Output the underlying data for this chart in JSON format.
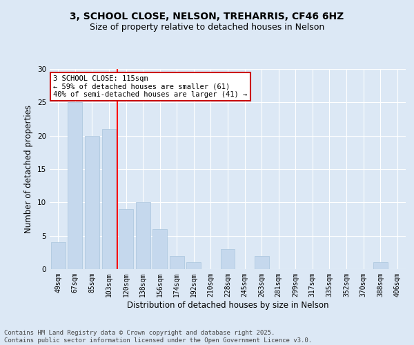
{
  "title1": "3, SCHOOL CLOSE, NELSON, TREHARRIS, CF46 6HZ",
  "title2": "Size of property relative to detached houses in Nelson",
  "xlabel": "Distribution of detached houses by size in Nelson",
  "ylabel": "Number of detached properties",
  "categories": [
    "49sqm",
    "67sqm",
    "85sqm",
    "103sqm",
    "120sqm",
    "138sqm",
    "156sqm",
    "174sqm",
    "192sqm",
    "210sqm",
    "228sqm",
    "245sqm",
    "263sqm",
    "281sqm",
    "299sqm",
    "317sqm",
    "335sqm",
    "352sqm",
    "370sqm",
    "388sqm",
    "406sqm"
  ],
  "values": [
    4,
    25,
    20,
    21,
    9,
    10,
    6,
    2,
    1,
    0,
    3,
    0,
    2,
    0,
    0,
    0,
    0,
    0,
    0,
    1,
    0
  ],
  "bar_color": "#c5d8ed",
  "bar_edge_color": "#a8c4dd",
  "red_line_index": 4,
  "ylim": [
    0,
    30
  ],
  "yticks": [
    0,
    5,
    10,
    15,
    20,
    25,
    30
  ],
  "annotation_title": "3 SCHOOL CLOSE: 115sqm",
  "annotation_line1": "← 59% of detached houses are smaller (61)",
  "annotation_line2": "40% of semi-detached houses are larger (41) →",
  "annotation_box_facecolor": "#ffffff",
  "annotation_box_edgecolor": "#cc0000",
  "background_color": "#dce8f5",
  "plot_bg_color": "#dce8f5",
  "footer": "Contains HM Land Registry data © Crown copyright and database right 2025.\nContains public sector information licensed under the Open Government Licence v3.0.",
  "title1_fontsize": 10,
  "title2_fontsize": 9,
  "xlabel_fontsize": 8.5,
  "ylabel_fontsize": 8.5,
  "footer_fontsize": 6.5,
  "grid_color": "#ffffff",
  "tick_label_fontsize": 7,
  "annotation_fontsize": 7.5
}
